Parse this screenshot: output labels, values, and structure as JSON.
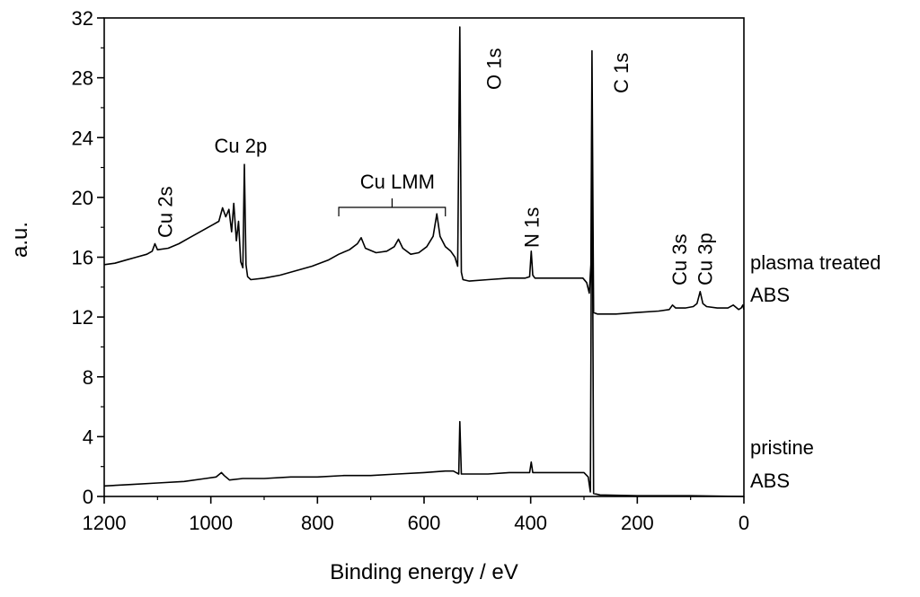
{
  "chart_data": {
    "type": "line",
    "title": "",
    "xlabel": "Binding energy / eV",
    "ylabel": "a.u.",
    "xlim": [
      1200,
      0
    ],
    "ylim": [
      0,
      32
    ],
    "x_reversed": true,
    "xticks": [
      1200,
      1000,
      800,
      600,
      400,
      200,
      0
    ],
    "yticks": [
      0,
      4,
      8,
      12,
      16,
      20,
      24,
      28,
      32
    ],
    "grid": false,
    "legend": "none",
    "line_color": "#000000",
    "series": [
      {
        "labels": [
          "plasma treated",
          "ABS"
        ],
        "points": [
          [
            1200,
            15.5
          ],
          [
            1180,
            15.6
          ],
          [
            1160,
            15.8
          ],
          [
            1140,
            16.0
          ],
          [
            1120,
            16.2
          ],
          [
            1110,
            16.4
          ],
          [
            1105,
            16.9
          ],
          [
            1100,
            16.5
          ],
          [
            1080,
            16.6
          ],
          [
            1060,
            16.9
          ],
          [
            1040,
            17.3
          ],
          [
            1020,
            17.7
          ],
          [
            1005,
            18.0
          ],
          [
            995,
            18.2
          ],
          [
            985,
            18.4
          ],
          [
            978,
            19.3
          ],
          [
            972,
            18.7
          ],
          [
            966,
            19.2
          ],
          [
            961,
            17.7
          ],
          [
            957,
            19.6
          ],
          [
            952,
            17.1
          ],
          [
            948,
            18.4
          ],
          [
            944,
            15.7
          ],
          [
            940,
            15.3
          ],
          [
            937,
            22.2
          ],
          [
            934,
            15.5
          ],
          [
            931,
            14.7
          ],
          [
            925,
            14.5
          ],
          [
            900,
            14.6
          ],
          [
            870,
            14.8
          ],
          [
            840,
            15.1
          ],
          [
            810,
            15.4
          ],
          [
            780,
            15.8
          ],
          [
            760,
            16.2
          ],
          [
            740,
            16.5
          ],
          [
            725,
            16.9
          ],
          [
            718,
            17.3
          ],
          [
            710,
            16.6
          ],
          [
            690,
            16.3
          ],
          [
            670,
            16.4
          ],
          [
            656,
            16.7
          ],
          [
            648,
            17.2
          ],
          [
            640,
            16.6
          ],
          [
            625,
            16.2
          ],
          [
            610,
            16.3
          ],
          [
            595,
            16.7
          ],
          [
            583,
            17.4
          ],
          [
            576,
            18.9
          ],
          [
            570,
            17.4
          ],
          [
            560,
            16.7
          ],
          [
            550,
            16.4
          ],
          [
            542,
            16.0
          ],
          [
            537,
            15.4
          ],
          [
            533,
            31.4
          ],
          [
            530,
            15.0
          ],
          [
            527,
            14.5
          ],
          [
            515,
            14.4
          ],
          [
            480,
            14.5
          ],
          [
            440,
            14.6
          ],
          [
            410,
            14.6
          ],
          [
            402,
            14.7
          ],
          [
            399,
            16.4
          ],
          [
            396,
            14.8
          ],
          [
            392,
            14.6
          ],
          [
            360,
            14.6
          ],
          [
            320,
            14.6
          ],
          [
            302,
            14.6
          ],
          [
            295,
            14.3
          ],
          [
            290,
            13.6
          ],
          [
            287,
            15.5
          ],
          [
            285,
            29.8
          ],
          [
            282,
            12.3
          ],
          [
            275,
            12.2
          ],
          [
            240,
            12.2
          ],
          [
            200,
            12.3
          ],
          [
            160,
            12.4
          ],
          [
            140,
            12.5
          ],
          [
            134,
            12.8
          ],
          [
            128,
            12.6
          ],
          [
            110,
            12.6
          ],
          [
            95,
            12.7
          ],
          [
            88,
            12.9
          ],
          [
            82,
            13.7
          ],
          [
            77,
            12.9
          ],
          [
            70,
            12.7
          ],
          [
            50,
            12.6
          ],
          [
            30,
            12.6
          ],
          [
            20,
            12.8
          ],
          [
            10,
            12.5
          ],
          [
            5,
            12.6
          ],
          [
            2,
            12.8
          ],
          [
            0,
            12.5
          ]
        ]
      },
      {
        "labels": [
          "pristine",
          "ABS"
        ],
        "points": [
          [
            1200,
            0.7
          ],
          [
            1150,
            0.8
          ],
          [
            1100,
            0.9
          ],
          [
            1050,
            1.0
          ],
          [
            1010,
            1.2
          ],
          [
            990,
            1.3
          ],
          [
            980,
            1.6
          ],
          [
            975,
            1.4
          ],
          [
            965,
            1.1
          ],
          [
            940,
            1.2
          ],
          [
            900,
            1.2
          ],
          [
            850,
            1.3
          ],
          [
            800,
            1.3
          ],
          [
            750,
            1.4
          ],
          [
            700,
            1.4
          ],
          [
            650,
            1.5
          ],
          [
            600,
            1.6
          ],
          [
            560,
            1.7
          ],
          [
            545,
            1.7
          ],
          [
            535,
            1.5
          ],
          [
            533,
            5.0
          ],
          [
            530,
            1.5
          ],
          [
            520,
            1.5
          ],
          [
            480,
            1.5
          ],
          [
            440,
            1.6
          ],
          [
            402,
            1.6
          ],
          [
            399,
            2.3
          ],
          [
            396,
            1.6
          ],
          [
            360,
            1.6
          ],
          [
            320,
            1.6
          ],
          [
            300,
            1.6
          ],
          [
            292,
            1.3
          ],
          [
            288,
            0.3
          ],
          [
            285,
            26.5
          ],
          [
            282,
            0.2
          ],
          [
            270,
            0.1
          ],
          [
            200,
            0.05
          ],
          [
            100,
            0.05
          ],
          [
            0,
            0.0
          ]
        ]
      }
    ],
    "annotations": [
      {
        "text": "Cu 2s",
        "x": 1100,
        "rotated": true
      },
      {
        "text": "Cu 2p",
        "x": 944,
        "rotated": false
      },
      {
        "text": "Cu LMM",
        "x": 650,
        "rotated": false
      },
      {
        "text": "O 1s",
        "x": 530,
        "rotated": true
      },
      {
        "text": "N 1s",
        "x": 399,
        "rotated": true
      },
      {
        "text": "C 1s",
        "x": 285,
        "rotated": true
      },
      {
        "text": "Cu 3s",
        "x": 125,
        "rotated": true
      },
      {
        "text": "Cu 3p",
        "x": 77,
        "rotated": true
      }
    ],
    "bracket": {
      "x_from": 760,
      "x_to": 560
    }
  }
}
